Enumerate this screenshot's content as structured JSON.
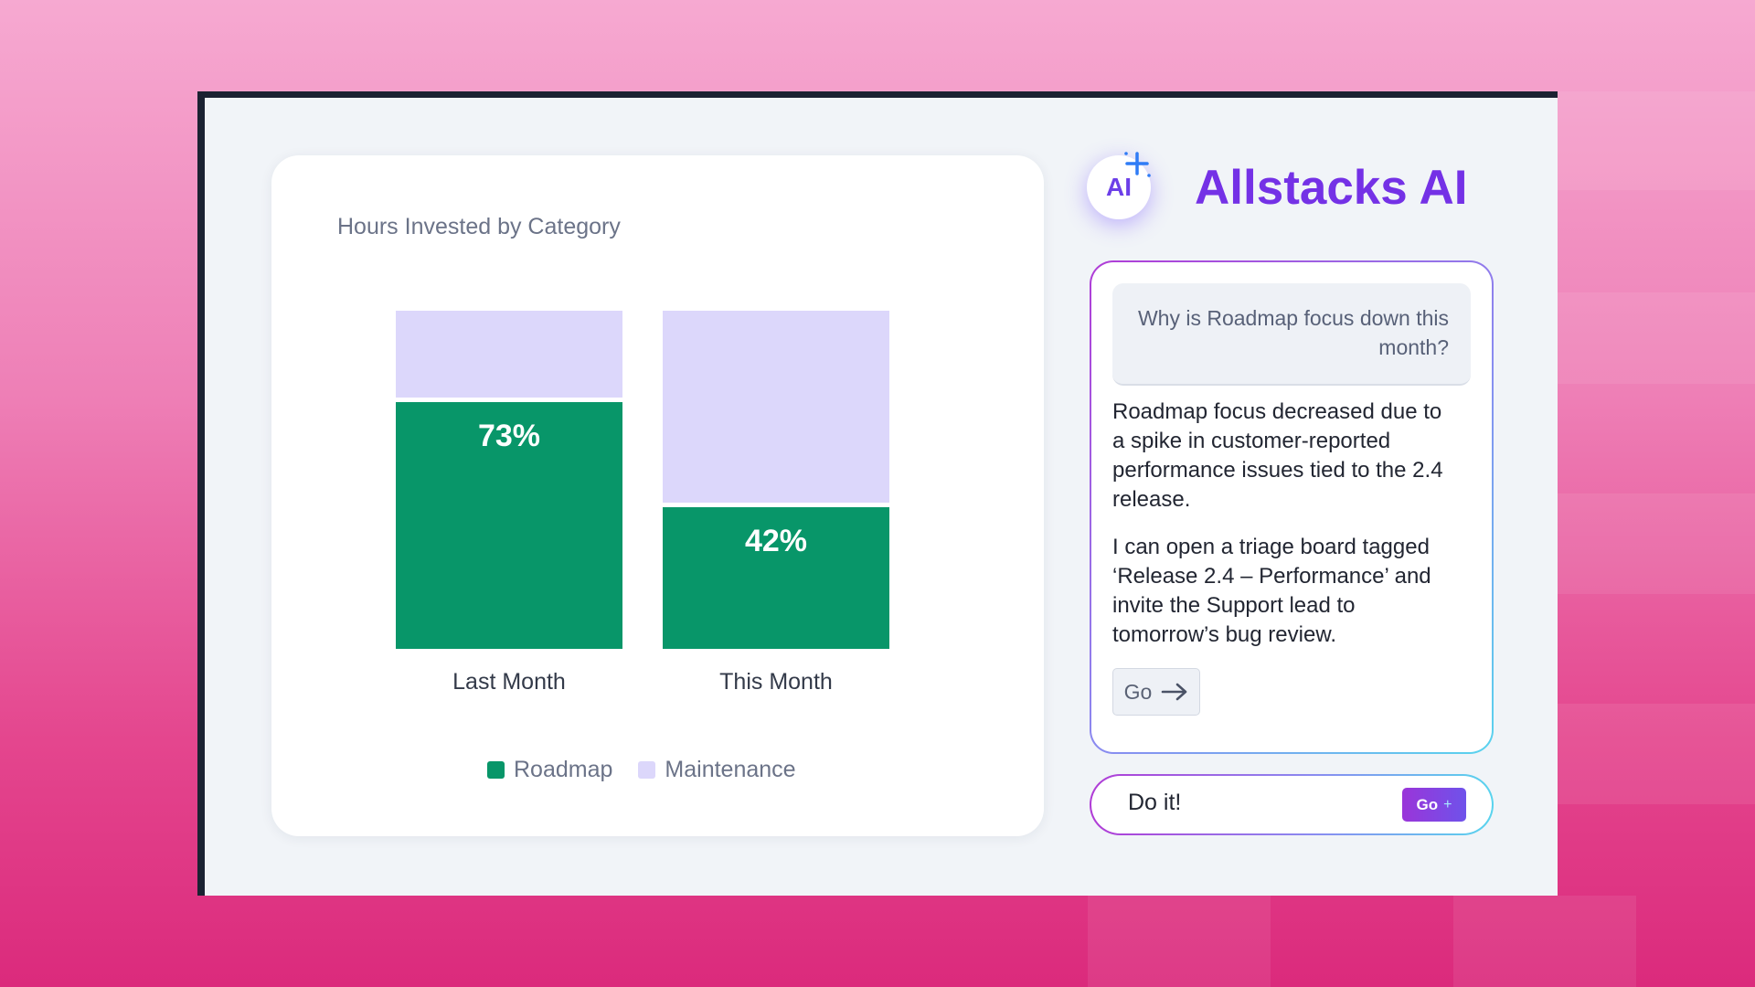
{
  "chart": {
    "title": "Hours Invested by Category"
  },
  "chart_data": {
    "type": "bar",
    "stacked": true,
    "percent_stacked": true,
    "title": "Hours Invested by Category",
    "categories": [
      "Last Month",
      "This Month"
    ],
    "series": [
      {
        "name": "Roadmap",
        "values": [
          73,
          42
        ],
        "color": "#089669"
      },
      {
        "name": "Maintenance",
        "values": [
          27,
          58
        ],
        "color": "#dcd7fb"
      }
    ],
    "data_labels": [
      "73%",
      "42%"
    ],
    "ylim": [
      0,
      100
    ],
    "grid": false,
    "legend_position": "bottom"
  },
  "assistant": {
    "badge_text": "AI",
    "title": "Allstacks AI",
    "question": "Why is Roadmap focus down this month?",
    "answer_p1": "Roadmap focus decreased due to a spike in customer-reported performance issues tied to the 2.4 release.",
    "answer_p2": "I can open a triage board tagged ‘Release 2.4 – Performance’ and invite the Support lead to tomorrow’s bug review.",
    "go_label": "Go",
    "arrow": "→",
    "input_value": "Do it!",
    "send_label": "Go",
    "send_plus": "+"
  },
  "colors": {
    "brand": "#7431e6",
    "roadmap": "#089669",
    "maintenance": "#dcd7fb"
  }
}
